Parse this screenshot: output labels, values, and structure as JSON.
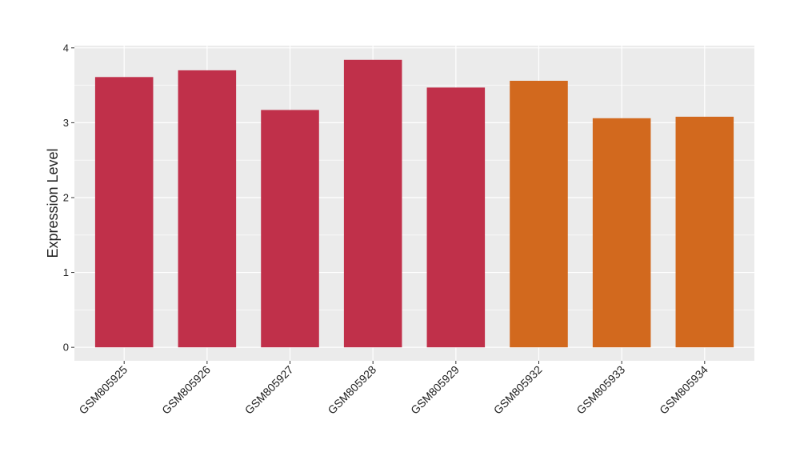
{
  "chart_data": {
    "type": "bar",
    "y_label": "Expression Level",
    "categories": [
      "GSM805925",
      "GSM805926",
      "GSM805927",
      "GSM805928",
      "GSM805929",
      "GSM805932",
      "GSM805933",
      "GSM805934"
    ],
    "values": [
      3.61,
      3.7,
      3.17,
      3.84,
      3.47,
      3.56,
      3.06,
      3.08
    ],
    "colors": [
      "#c0304a",
      "#c0304a",
      "#c0304a",
      "#c0304a",
      "#c0304a",
      "#d2691e",
      "#d2691e",
      "#d2691e"
    ],
    "ylim": [
      -0.18,
      4.03
    ],
    "yticks": [
      0,
      1,
      2,
      3,
      4
    ],
    "grid": true
  }
}
